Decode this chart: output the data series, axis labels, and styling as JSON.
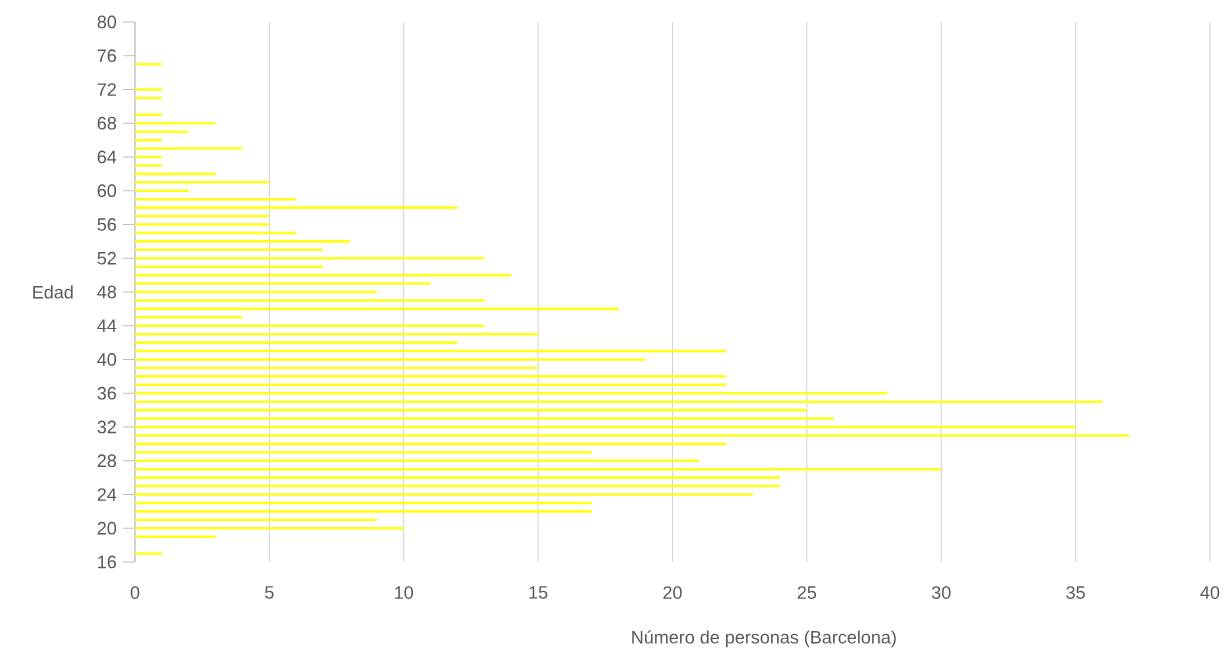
{
  "chart_data": {
    "type": "bar",
    "orientation": "horizontal",
    "xlabel": "Número de personas (Barcelona)",
    "ylabel": "Edad",
    "x": [
      17,
      19,
      20,
      21,
      22,
      23,
      24,
      25,
      26,
      27,
      28,
      29,
      30,
      31,
      32,
      33,
      34,
      35,
      36,
      37,
      38,
      39,
      40,
      41,
      42,
      43,
      44,
      45,
      46,
      47,
      48,
      49,
      50,
      51,
      52,
      53,
      54,
      55,
      56,
      57,
      58,
      59,
      60,
      61,
      62,
      63,
      64,
      65,
      66,
      67,
      68,
      69,
      71,
      72,
      75
    ],
    "values": [
      1,
      3,
      10,
      9,
      17,
      17,
      23,
      24,
      24,
      30,
      21,
      17,
      22,
      37,
      35,
      26,
      25,
      36,
      28,
      22,
      22,
      15,
      19,
      22,
      12,
      15,
      13,
      4,
      18,
      13,
      9,
      11,
      14,
      7,
      13,
      7,
      8,
      6,
      5,
      5,
      12,
      6,
      2,
      5,
      3,
      1,
      1,
      4,
      1,
      2,
      3,
      1,
      1,
      1,
      1
    ],
    "color": "#ffff1a",
    "xlim": [
      0,
      40
    ],
    "xticks": [
      0,
      5,
      10,
      15,
      20,
      25,
      30,
      35,
      40
    ],
    "ylim": [
      16,
      80
    ],
    "yticks": [
      16,
      20,
      24,
      28,
      32,
      36,
      40,
      44,
      48,
      52,
      56,
      60,
      64,
      68,
      72,
      76,
      80
    ],
    "grid": "x"
  }
}
